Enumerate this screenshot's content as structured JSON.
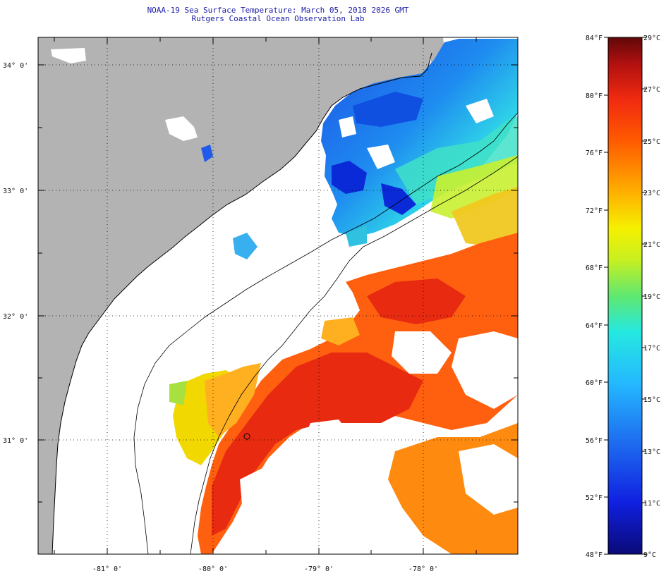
{
  "title": {
    "line1": "NOAA-19 Sea Surface Temperature:  March 05, 2018 2026 GMT",
    "line2": "Rutgers Coastal Ocean Observation Lab"
  },
  "map": {
    "lat_labels": [
      "34° 0'",
      "33° 0'",
      "32° 0'",
      "31° 0'"
    ],
    "lon_labels": [
      "-81° 0'",
      "-80° 0'",
      "-79° 0'",
      "-78° 0'"
    ],
    "colors": {
      "land": "#b3b3b3",
      "cloud": "#ffffff",
      "coast": "#000000"
    }
  },
  "colorbar": {
    "fahrenheit_labels": [
      "84°F",
      "80°F",
      "76°F",
      "72°F",
      "68°F",
      "64°F",
      "60°F",
      "56°F",
      "52°F",
      "48°F"
    ],
    "celsius_labels": [
      "29°C",
      "27°C",
      "25°C",
      "23°C",
      "21°C",
      "19°C",
      "17°C",
      "15°C",
      "13°C",
      "11°C",
      "9°C"
    ],
    "min_c": 9,
    "max_c": 29
  }
}
